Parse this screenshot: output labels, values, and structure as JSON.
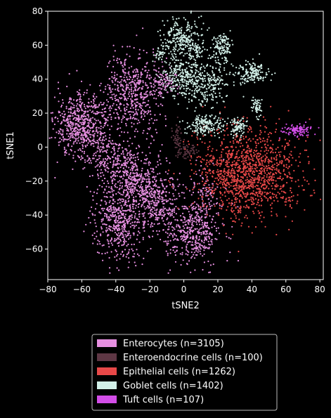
{
  "chart_data": {
    "type": "scatter",
    "title": "",
    "xlabel": "tSNE2",
    "ylabel": "tSNE1",
    "xlim": [
      -80,
      82
    ],
    "ylim": [
      -78,
      80
    ],
    "xticks": [
      "−80",
      "−60",
      "−40",
      "−20",
      "0",
      "20",
      "40",
      "60",
      "80"
    ],
    "yticks": [
      "−60",
      "−40",
      "−20",
      "0",
      "20",
      "40",
      "60",
      "80"
    ],
    "grid": false,
    "legend_position": "below",
    "background": "#000000",
    "series": [
      {
        "name": "Enterocytes (n=3105)",
        "color": "#e68fe0",
        "count": 3105,
        "clusters": [
          {
            "cx": -60,
            "cy": 12,
            "sx": 8,
            "sy": 10,
            "w": 0.2
          },
          {
            "cx": -30,
            "cy": 32,
            "sx": 8,
            "sy": 12,
            "w": 0.17
          },
          {
            "cx": -42,
            "cy": -8,
            "sx": 7,
            "sy": 7,
            "w": 0.07
          },
          {
            "cx": -28,
            "cy": -20,
            "sx": 7,
            "sy": 10,
            "w": 0.1
          },
          {
            "cx": -38,
            "cy": -43,
            "sx": 7,
            "sy": 11,
            "w": 0.16
          },
          {
            "cx": -15,
            "cy": -32,
            "sx": 7,
            "sy": 9,
            "w": 0.1
          },
          {
            "cx": 5,
            "cy": -50,
            "sx": 8,
            "sy": 9,
            "w": 0.14
          },
          {
            "cx": -12,
            "cy": 38,
            "sx": 4,
            "sy": 4,
            "w": 0.03
          },
          {
            "cx": 12,
            "cy": -30,
            "sx": 5,
            "sy": 8,
            "w": 0.03
          }
        ]
      },
      {
        "name": "Enteroendocrine cells (n=100)",
        "color": "#5e3744",
        "count": 100,
        "clusters": [
          {
            "cx": -4,
            "cy": 6,
            "sx": 1.5,
            "sy": 4,
            "w": 0.45
          },
          {
            "cx": 2,
            "cy": -3,
            "sx": 3,
            "sy": 2.5,
            "w": 0.55
          }
        ]
      },
      {
        "name": "Epithelial cells (n=1262)",
        "color": "#e84848",
        "count": 1262,
        "clusters": [
          {
            "cx": 38,
            "cy": -15,
            "sx": 15,
            "sy": 13,
            "w": 1.0
          }
        ]
      },
      {
        "name": "Goblet cells (n=1402)",
        "color": "#d2f0e8",
        "count": 1402,
        "clusters": [
          {
            "cx": -1,
            "cy": 63,
            "sx": 6,
            "sy": 6,
            "w": 0.2
          },
          {
            "cx": 22,
            "cy": 58,
            "sx": 3,
            "sy": 5,
            "w": 0.09
          },
          {
            "cx": 12,
            "cy": 38,
            "sx": 8,
            "sy": 7,
            "w": 0.2
          },
          {
            "cx": -2,
            "cy": 42,
            "sx": 6,
            "sy": 6,
            "w": 0.13
          },
          {
            "cx": 12,
            "cy": 13,
            "sx": 5,
            "sy": 3,
            "w": 0.12
          },
          {
            "cx": 40,
            "cy": 44,
            "sx": 5,
            "sy": 3,
            "w": 0.12
          },
          {
            "cx": 32,
            "cy": 12,
            "sx": 3,
            "sy": 3,
            "w": 0.06
          },
          {
            "cx": 43,
            "cy": 24,
            "sx": 1.5,
            "sy": 3,
            "w": 0.04
          },
          {
            "cx": -14,
            "cy": 55,
            "sx": 2,
            "sy": 2,
            "w": 0.02
          },
          {
            "cx": 8,
            "cy": 56,
            "sx": 2,
            "sy": 2,
            "w": 0.02
          }
        ]
      },
      {
        "name": "Tuft cells (n=107)",
        "color": "#d34ee8",
        "count": 107,
        "clusters": [
          {
            "cx": 67,
            "cy": 10,
            "sx": 4,
            "sy": 1.8,
            "w": 1.0
          }
        ]
      }
    ]
  }
}
